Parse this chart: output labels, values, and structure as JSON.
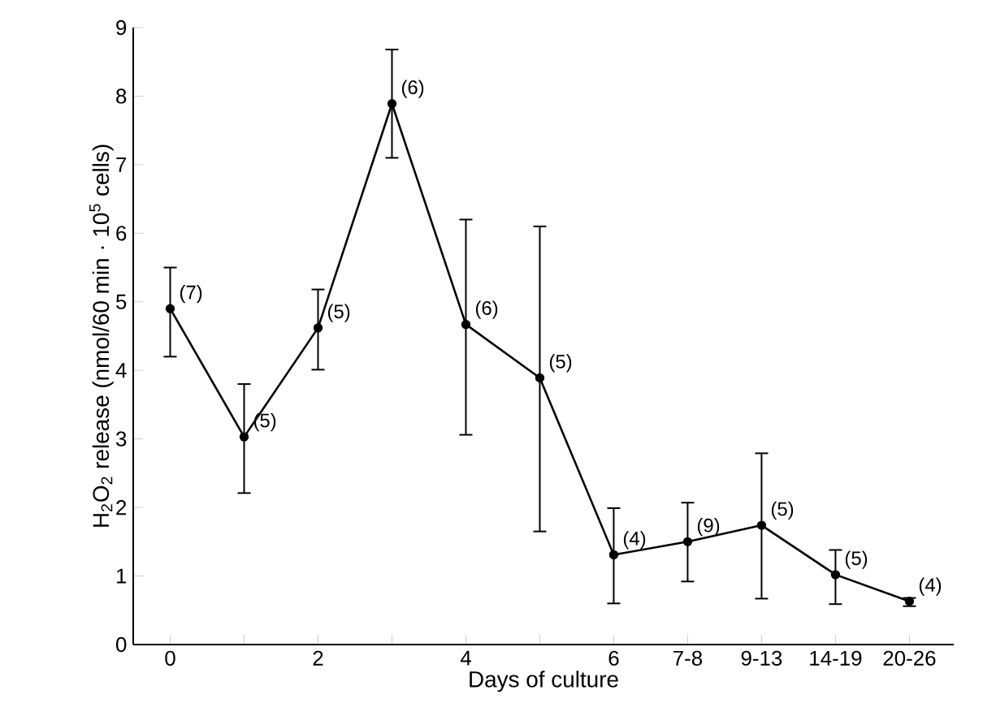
{
  "chart_data": {
    "type": "line",
    "xlabel": "Days of culture",
    "ylabel": "H$_{2}$O$_{2}$ release (nmol/60 min · 10$^{5}$ cells)",
    "categories": [
      "0",
      null,
      "2",
      null,
      "4",
      null,
      "6",
      "7-8",
      "9-13",
      "14-19",
      "20-26"
    ],
    "series": [
      {
        "color": "#000000",
        "values": [
          4.9,
          3.03,
          4.62,
          7.89,
          4.67,
          3.89,
          1.31,
          1.5,
          1.74,
          1.02,
          0.63
        ],
        "errors": [
          [
            4.2,
            5.5
          ],
          [
            2.21,
            3.8
          ],
          [
            4.01,
            5.18
          ],
          [
            7.1,
            8.68
          ],
          [
            3.06,
            6.2
          ],
          [
            1.65,
            6.1
          ],
          [
            0.6,
            1.99
          ],
          [
            0.92,
            2.07
          ],
          [
            0.67,
            2.79
          ],
          [
            0.59,
            1.38
          ],
          [
            0.56,
            0.68
          ]
        ]
      }
    ],
    "annotations": [
      {
        "text": "(7)",
        "x": "0",
        "y": 4.9
      },
      "(5)",
      {
        "text": "(5)",
        "x": "2",
        "y": 4.62
      },
      "(6)",
      {
        "text": "(6)",
        "x": "4",
        "y": 4.67
      },
      "(5)",
      {
        "text": "(4)",
        "x": "6",
        "y": 1.31
      },
      {
        "text": "(9)",
        "x": "7-8",
        "y": 1.5
      },
      {
        "text": "(5)",
        "x": "9-13",
        "y": 1.74
      },
      {
        "text": "(5)",
        "x": "14-19",
        "y": 1.02
      },
      {
        "text": "(4)",
        "x": "20-26",
        "y": 0.63
      }
    ],
    "ylim": [
      0,
      9
    ],
    "yticks": [
      0,
      1,
      2,
      3,
      4,
      5,
      6,
      7,
      8,
      9
    ],
    "marker": "circle",
    "line_style": "solid",
    "grid": false,
    "legend": false
  }
}
